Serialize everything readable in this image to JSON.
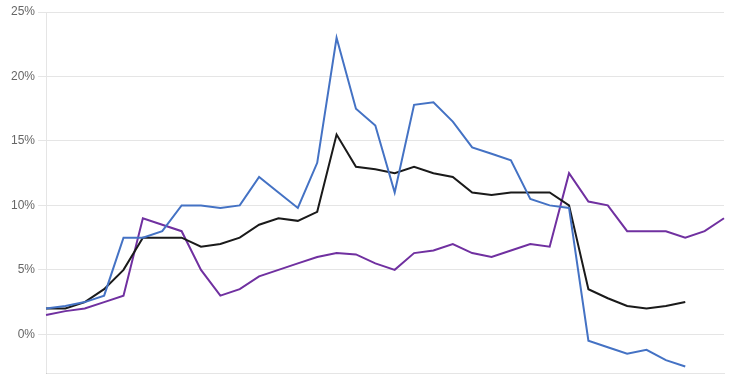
{
  "chart_data": {
    "type": "line",
    "categories": [
      null,
      null,
      null,
      null,
      null,
      null,
      null,
      null,
      null,
      null,
      null,
      null,
      null,
      null,
      null,
      null,
      null,
      null,
      null,
      null,
      null,
      null,
      null,
      null,
      null,
      null,
      null,
      null,
      null,
      null,
      null,
      null,
      null,
      null,
      null,
      null
    ],
    "series": [
      {
        "color": "#4472C4",
        "values": [
          2.0,
          2.2,
          2.5,
          3.0,
          7.5,
          7.5,
          8.0,
          10.0,
          10.0,
          9.8,
          10.0,
          12.2,
          11.0,
          9.8,
          13.3,
          23.0,
          17.5,
          16.2,
          11.0,
          17.8,
          18.0,
          16.5,
          14.5,
          14.0,
          13.5,
          10.5,
          10.0,
          9.8,
          -0.5,
          -1.0,
          -1.5,
          -1.2,
          -2.0,
          -2.5,
          null,
          null
        ]
      },
      {
        "color": "#1a1a1a",
        "values": [
          2.0,
          2.0,
          2.5,
          3.5,
          5.0,
          7.5,
          7.5,
          7.5,
          6.8,
          7.0,
          7.5,
          8.5,
          9.0,
          8.8,
          9.5,
          15.5,
          13.0,
          12.8,
          12.5,
          13.0,
          12.5,
          12.2,
          11.0,
          10.8,
          11.0,
          11.0,
          11.0,
          10.0,
          3.5,
          2.8,
          2.2,
          2.0,
          2.2,
          2.5,
          null,
          null
        ]
      },
      {
        "color": "#7030A0",
        "values": [
          1.5,
          1.8,
          2.0,
          2.5,
          3.0,
          9.0,
          8.5,
          8.0,
          5.0,
          3.0,
          3.5,
          4.5,
          5.0,
          5.5,
          6.0,
          6.3,
          6.2,
          5.5,
          5.0,
          6.3,
          6.5,
          7.0,
          6.3,
          6.0,
          6.5,
          7.0,
          6.8,
          12.5,
          10.3,
          10.0,
          8.0,
          8.0,
          8.0,
          7.5,
          8.0,
          9.0
        ]
      }
    ],
    "ylim": [
      -3,
      25
    ],
    "yticks": [
      {
        "value": 0,
        "label": "0%"
      },
      {
        "value": 5,
        "label": "5%"
      },
      {
        "value": 10,
        "label": "10%"
      },
      {
        "value": 15,
        "label": "15%"
      },
      {
        "value": 20,
        "label": "20%"
      },
      {
        "value": 25,
        "label": "25%"
      }
    ],
    "grid": true,
    "tick_labels": "y"
  }
}
